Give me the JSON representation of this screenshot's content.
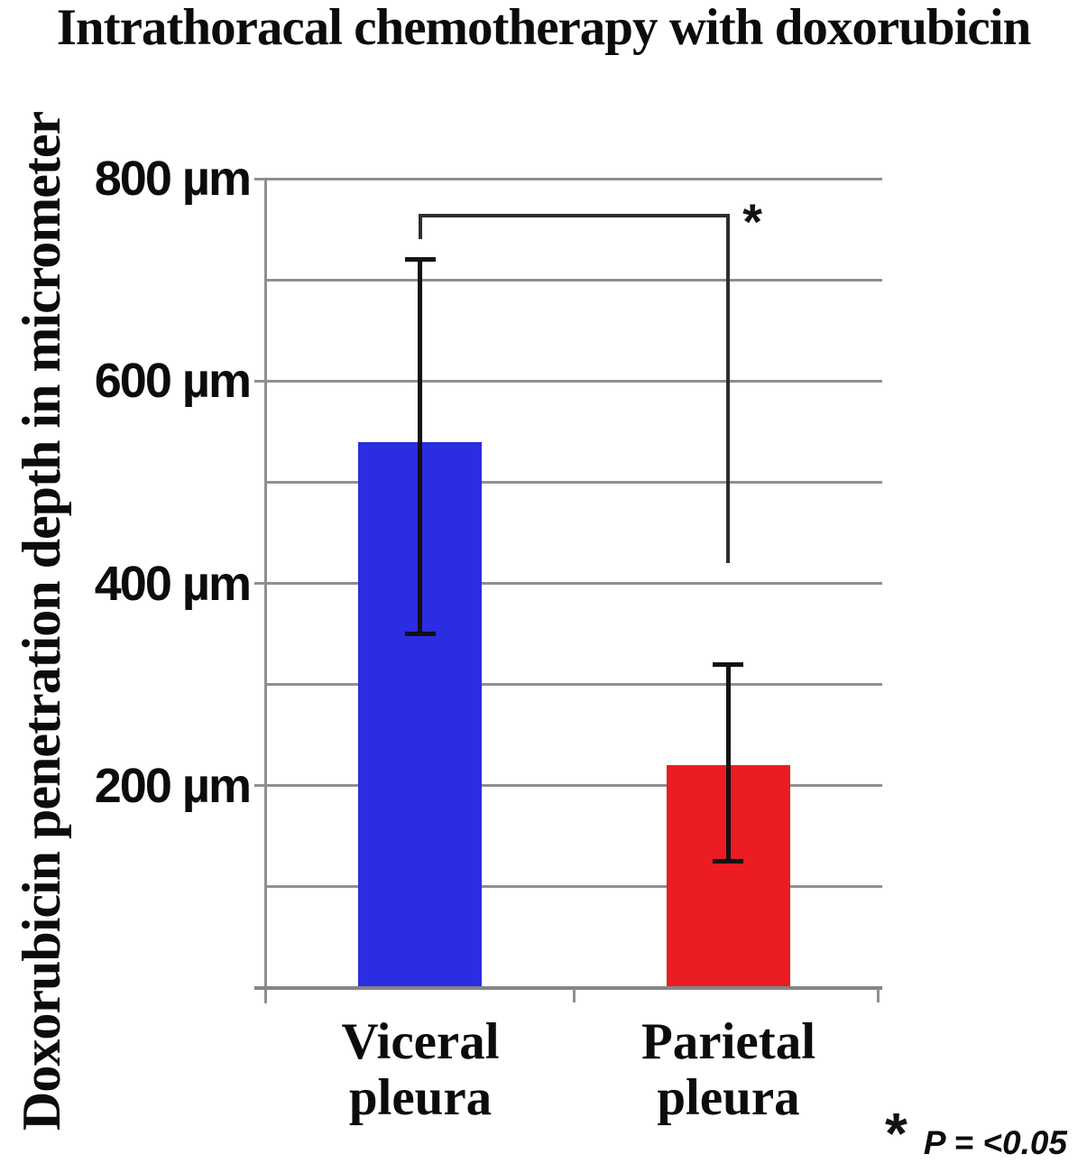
{
  "chart_data": {
    "type": "bar",
    "title": "Intrathoracal chemotherapy with doxorubicin",
    "ylabel": "Doxorubicin penetration depth in micrometer",
    "xlabel": "",
    "ylim": [
      0,
      800
    ],
    "grid": true,
    "gridlines_um": [
      100,
      200,
      300,
      400,
      500,
      600,
      700,
      800
    ],
    "yticks": [
      {
        "value": 800,
        "label": "800 µm"
      },
      {
        "value": 600,
        "label": "600 µm"
      },
      {
        "value": 400,
        "label": "400 µm"
      },
      {
        "value": 200,
        "label": "200 µm"
      }
    ],
    "categories": [
      {
        "name": "Viceral pleura",
        "label_lines": [
          "Viceral",
          "pleura"
        ]
      },
      {
        "name": "Parietal pleura",
        "label_lines": [
          "Parietal",
          "pleura"
        ]
      }
    ],
    "series": [
      {
        "name": "Doxorubicin penetration depth",
        "values_um": [
          540,
          220
        ],
        "error_high_um": [
          720,
          320
        ],
        "error_low_um": [
          350,
          125
        ],
        "bar_colors": [
          "#2c2ce2",
          "#eb1c23"
        ]
      }
    ],
    "annotations": {
      "significance_marker": "*",
      "bracket": {
        "between": [
          "Viceral pleura",
          "Parietal pleura"
        ],
        "top_um": 765,
        "left_drop_to_um": 740,
        "right_drop_to_um": 420
      }
    },
    "footnote": {
      "symbol": "*",
      "text": "P = <0.05"
    }
  },
  "colors": {
    "gridline": "#8f8f8f",
    "axis": "#858585",
    "error_bar": "#121212",
    "bracket": "#2e2e2e",
    "asterisk": "#101417",
    "text": "#000000",
    "background": "#ffffff"
  }
}
